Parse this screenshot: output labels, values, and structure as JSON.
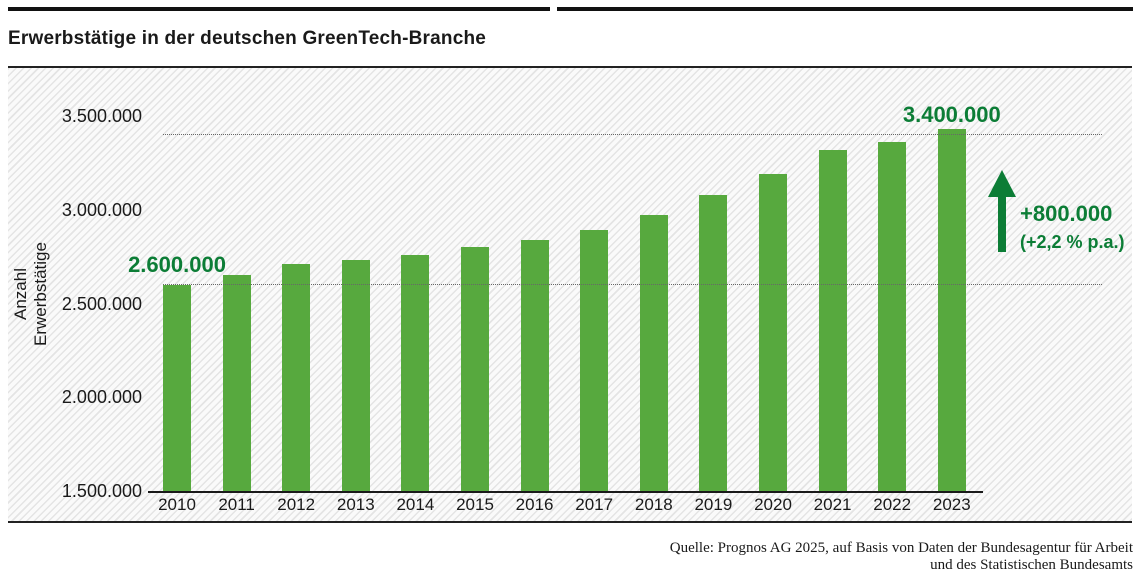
{
  "page": {
    "title": "Erwerbstätige in der deutschen GreenTech-Branche",
    "source_line1": "Quelle: Prognos AG 2025, auf Basis von Daten der Bundesagentur für Arbeit",
    "source_line2": "und des Statistischen Bundesamts"
  },
  "colors": {
    "bar_green": "#57a93e",
    "accent_dark_green": "#0c7d36",
    "text_black": "#1a1a1a",
    "gridline_gray": "#676767"
  },
  "chart_data": {
    "type": "bar",
    "title": "Erwerbstätige in der deutschen GreenTech-Branche",
    "xlabel": "",
    "ylabel": "Anzahl Erwerbstätige",
    "categories": [
      "2010",
      "2011",
      "2012",
      "2013",
      "2014",
      "2015",
      "2016",
      "2017",
      "2018",
      "2019",
      "2020",
      "2021",
      "2022",
      "2023"
    ],
    "values": [
      2600000,
      2650000,
      2710000,
      2730000,
      2760000,
      2800000,
      2840000,
      2890000,
      2970000,
      3080000,
      3190000,
      3320000,
      3360000,
      3430000
    ],
    "ylim": [
      1500000,
      3600000
    ],
    "yticks": [
      {
        "value": 3500000,
        "label": "3.500.000"
      },
      {
        "value": 3000000,
        "label": "3.000.000"
      },
      {
        "value": 2500000,
        "label": "2.500.000"
      },
      {
        "value": 2000000,
        "label": "2.000.000"
      },
      {
        "value": 1500000,
        "label": "1.500.000"
      }
    ],
    "reference_lines": [
      {
        "value": 2600000,
        "label": "2.600.000",
        "anchor": "2010",
        "style": "dotted"
      },
      {
        "value": 3400000,
        "label": "3.400.000",
        "anchor": "2023",
        "style": "dotted"
      }
    ],
    "annotations": {
      "delta": "+800.000",
      "rate": "(+2,2 % p.a.)"
    },
    "grid": "dotted reference lines at 2.600.000 and 3.400.000 only",
    "legend": "none"
  }
}
